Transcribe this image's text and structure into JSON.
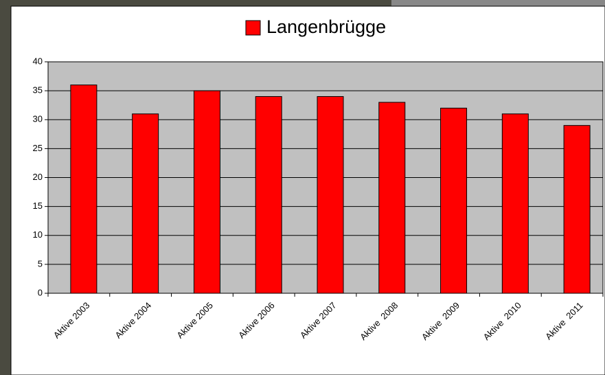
{
  "chart_data": {
    "type": "bar",
    "legend_title": "Langenbrügge",
    "series": [
      {
        "name": "Langenbrügge",
        "color": "#ff0000",
        "values": [
          36,
          31,
          35,
          34,
          34,
          33,
          32,
          31,
          29
        ]
      }
    ],
    "categories": [
      "Aktive 2003",
      "Aktive 2004",
      "Aktive 2005",
      "Aktive 2006",
      "Aktive 2007",
      "Aktive  2008",
      "Aktive  2009",
      "Aktive  2010",
      "Aktive  2011"
    ],
    "ylim": [
      0,
      40
    ],
    "yticks": [
      0,
      5,
      10,
      15,
      20,
      25,
      30,
      35,
      40
    ],
    "grid": true,
    "legend": "top"
  }
}
